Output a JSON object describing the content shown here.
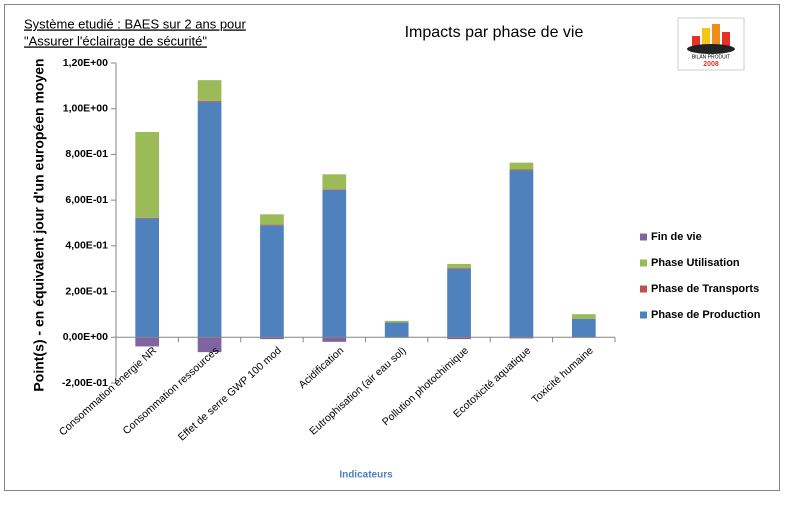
{
  "chart_data": {
    "type": "bar",
    "stacked": true,
    "subtitle": [
      "Système etudié : BAES sur 2 ans pour",
      "\"Assurer l'éclairage de sécurité\""
    ],
    "title": "Impacts par phase de vie",
    "logo": [
      "BILAN PRODUIT",
      "2008"
    ],
    "y_label": "Point(s)  - en équivalent jour d'un européen moyen",
    "x_label": "Indicateurs",
    "categories": [
      "Consommation énergie NR",
      "Consommation ressources",
      "Effet de serre GWP 100 mod",
      "Acidification",
      "Eutrophisation (air eau sol)",
      "Pollution photochimique",
      "Ecotoxicité aquatique",
      "Toxicité humaine"
    ],
    "series": [
      {
        "name": "Fin de vie",
        "color": "#8064a2",
        "values": [
          -0.04,
          -0.065,
          -0.008,
          -0.02,
          -0.002,
          -0.008,
          -0.005,
          -0.002
        ]
      },
      {
        "name": "Phase Utilisation",
        "color": "#9bbb59",
        "values": [
          0.375,
          0.09,
          0.045,
          0.065,
          0.006,
          0.018,
          0.03,
          0.02
        ]
      },
      {
        "name": "Phase de Transports",
        "color": "#c0504d",
        "values": [
          0.003,
          0.005,
          0.003,
          0.003,
          0.001,
          0.003,
          0.004,
          0.001
        ]
      },
      {
        "name": "Phase de Production",
        "color": "#4f81bd",
        "values": [
          0.52,
          1.03,
          0.49,
          0.645,
          0.065,
          0.3,
          0.73,
          0.08
        ]
      }
    ],
    "ylim": [
      -0.2,
      1.2
    ],
    "yticks": [
      {
        "value": -0.2,
        "label": "-2,00E-01"
      },
      {
        "value": 0,
        "label": "0,00E+00"
      },
      {
        "value": 0.2,
        "label": "2,00E-01"
      },
      {
        "value": 0.4,
        "label": "4,00E-01"
      },
      {
        "value": 0.6,
        "label": "6,00E-01"
      },
      {
        "value": 0.8,
        "label": "8,00E-01"
      },
      {
        "value": 1.0,
        "label": "1,00E+00"
      },
      {
        "value": 1.2,
        "label": "1,20E+00"
      }
    ],
    "legend": "right"
  }
}
